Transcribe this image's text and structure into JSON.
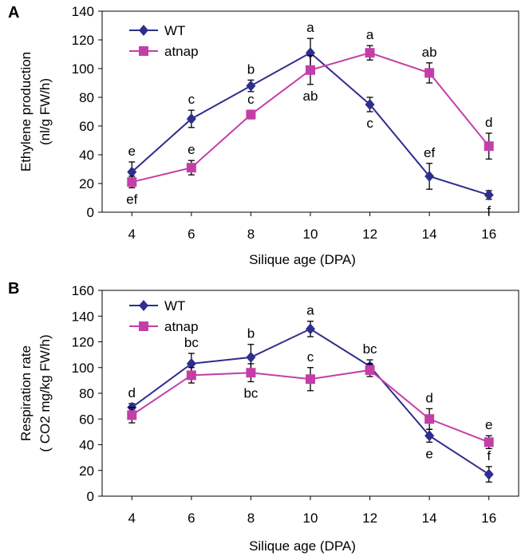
{
  "figure": {
    "panel_letters": [
      "A",
      "B"
    ]
  },
  "chart_data": [
    {
      "type": "line",
      "panel": "A",
      "xlabel": "Silique age (DPA)",
      "ylabel_lines": [
        "Ethylene production",
        "(nl/g FW/h)"
      ],
      "x": [
        4,
        6,
        8,
        10,
        12,
        14,
        16
      ],
      "xlim": [
        3,
        17
      ],
      "ylim": [
        0,
        140
      ],
      "yticks": [
        0,
        20,
        40,
        60,
        80,
        100,
        120,
        140
      ],
      "grid": false,
      "legend_position": "top-left",
      "series": [
        {
          "name": "WT",
          "color": "#2e2e8c",
          "marker": "diamond",
          "values": [
            28,
            65,
            88,
            111,
            75,
            25,
            12
          ],
          "errors": [
            7,
            6,
            4,
            10,
            5,
            9,
            3
          ],
          "labels": [
            "e",
            "c",
            "b",
            "a",
            "c",
            "ef",
            "f"
          ],
          "label_positions": [
            "above",
            "above",
            "above",
            "above",
            "below",
            "above",
            "below"
          ]
        },
        {
          "name": "atnap",
          "color": "#c43ea8",
          "marker": "square",
          "values": [
            21,
            31,
            68,
            99,
            111,
            97,
            46
          ],
          "errors": [
            4,
            5,
            3,
            10,
            5,
            7,
            9
          ],
          "labels": [
            "ef",
            "e",
            "c",
            "ab",
            "a",
            "ab",
            "d"
          ],
          "label_positions": [
            "below",
            "above",
            "above",
            "below",
            "above",
            "above",
            "above"
          ]
        }
      ]
    },
    {
      "type": "line",
      "panel": "B",
      "xlabel": "Silique age (DPA)",
      "ylabel_lines": [
        "Respiration rate",
        "( CO2 mg/kg FW/h)"
      ],
      "x": [
        4,
        6,
        8,
        10,
        12,
        14,
        16
      ],
      "xlim": [
        3,
        17
      ],
      "ylim": [
        0,
        160
      ],
      "yticks": [
        0,
        20,
        40,
        60,
        80,
        100,
        120,
        140,
        160
      ],
      "grid": false,
      "legend_position": "top-left",
      "series": [
        {
          "name": "WT",
          "color": "#2e2e8c",
          "marker": "diamond",
          "values": [
            69,
            103,
            108,
            130,
            101,
            47,
            17
          ],
          "errors": [
            3,
            8,
            10,
            6,
            5,
            5,
            6
          ],
          "labels": [
            "d",
            "bc",
            "b",
            "a",
            "bc",
            "e",
            "f"
          ],
          "label_positions": [
            "above",
            "above",
            "above",
            "above",
            "above",
            "below",
            "above"
          ]
        },
        {
          "name": "atnap",
          "color": "#c43ea8",
          "marker": "square",
          "values": [
            63,
            94,
            96,
            91,
            98,
            60,
            42
          ],
          "errors": [
            6,
            6,
            7,
            9,
            5,
            8,
            5
          ],
          "labels": [
            "",
            "",
            "bc",
            "c",
            "",
            "d",
            "e"
          ],
          "label_positions": [
            "",
            "",
            "below",
            "above",
            "",
            "above",
            "above"
          ]
        }
      ]
    }
  ]
}
